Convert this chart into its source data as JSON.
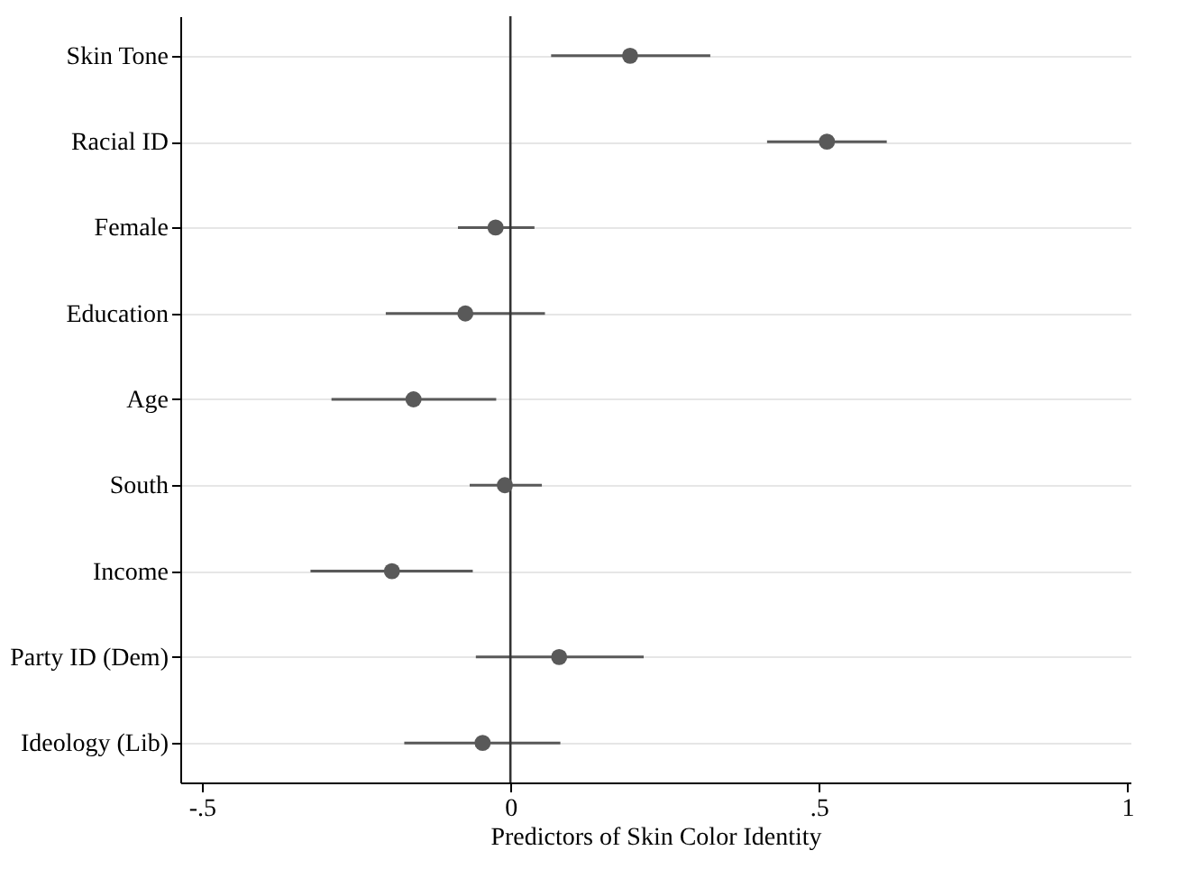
{
  "chart_data": {
    "type": "scatter",
    "orientation": "horizontal",
    "xlabel": "Predictors of Skin Color Identity",
    "categories": [
      "Skin Tone",
      "Racial ID",
      "Female",
      "Education",
      "Age",
      "South",
      "Income",
      "Party ID (Dem)",
      "Ideology (Lib)"
    ],
    "values": [
      0.194,
      0.513,
      -0.024,
      -0.073,
      -0.157,
      -0.009,
      -0.192,
      0.079,
      -0.045
    ],
    "errors": [
      [
        0.066,
        0.324
      ],
      [
        0.416,
        0.61
      ],
      [
        -0.085,
        0.039
      ],
      [
        -0.202,
        0.056
      ],
      [
        -0.29,
        -0.023
      ],
      [
        -0.066,
        0.051
      ],
      [
        -0.324,
        -0.061
      ],
      [
        -0.056,
        0.216
      ],
      [
        -0.172,
        0.081
      ]
    ],
    "color": "#595959",
    "marker": "circle",
    "grid": "y",
    "xlim": [
      -0.535,
      1.005
    ],
    "xticks": [
      {
        "value": -0.5,
        "label": "-.5"
      },
      0,
      {
        "value": 0.5,
        "label": ".5"
      },
      1
    ],
    "ref_lines": [
      {
        "axis": "x",
        "value": 0,
        "color": "#333333"
      }
    ]
  }
}
